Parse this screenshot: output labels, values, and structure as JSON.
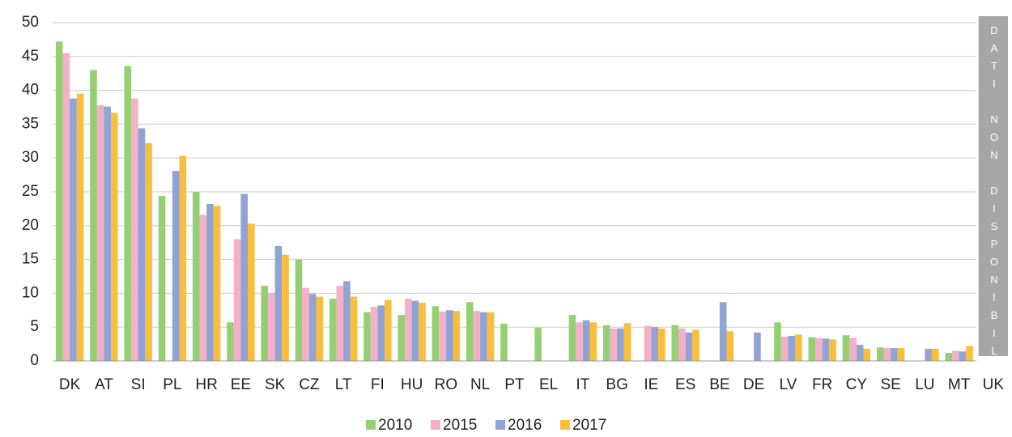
{
  "chart_data": {
    "type": "bar",
    "categories": [
      "DK",
      "AT",
      "SI",
      "PL",
      "HR",
      "EE",
      "SK",
      "CZ",
      "LT",
      "FI",
      "HU",
      "RO",
      "NL",
      "PT",
      "EL",
      "IT",
      "BG",
      "IE",
      "ES",
      "BE",
      "DE",
      "LV",
      "FR",
      "CY",
      "SE",
      "LU",
      "MT",
      "UK"
    ],
    "series": [
      {
        "name": "2010",
        "color": "#95cf74",
        "values": [
          47.2,
          43,
          43.6,
          24.4,
          25,
          5.7,
          11.1,
          15,
          9.2,
          7.2,
          6.8,
          8.1,
          8.7,
          5.5,
          4.9,
          6.8,
          5.3,
          null,
          5.3,
          null,
          null,
          5.7,
          3.5,
          3.8,
          2.0,
          null,
          1.2,
          null
        ]
      },
      {
        "name": "2015",
        "color": "#f5b0c8",
        "values": [
          45.5,
          37.8,
          38.8,
          null,
          21.6,
          18,
          10,
          10.8,
          11.1,
          8,
          9.2,
          7.3,
          7.4,
          null,
          null,
          5.7,
          4.8,
          5.2,
          4.8,
          null,
          null,
          3.6,
          3.4,
          3.4,
          1.9,
          null,
          1.5,
          null
        ]
      },
      {
        "name": "2016",
        "color": "#8fa3d5",
        "values": [
          38.8,
          37.6,
          34.4,
          28.1,
          23.2,
          24.7,
          17,
          9.9,
          11.8,
          8.2,
          8.9,
          7.5,
          7.2,
          null,
          null,
          6,
          4.8,
          5.0,
          4.2,
          8.7,
          4.2,
          3.7,
          3.3,
          2.4,
          1.9,
          1.8,
          1.4,
          null
        ]
      },
      {
        "name": "2017",
        "color": "#fbbd3c",
        "values": [
          39.5,
          36.7,
          32.2,
          30.3,
          22.9,
          20.3,
          15.7,
          9.5,
          9.5,
          9,
          8.6,
          7.4,
          7.2,
          null,
          null,
          5.7,
          5.6,
          4.8,
          4.6,
          4.4,
          null,
          3.9,
          3.2,
          1.8,
          1.9,
          1.8,
          2.2,
          null
        ]
      }
    ],
    "ylim": [
      0,
      50
    ],
    "yticks": [
      0,
      5,
      10,
      15,
      20,
      25,
      30,
      35,
      40,
      45,
      50
    ],
    "grid": true,
    "legend": "bottom",
    "annotation": "DATI NON DISPONIBILI"
  }
}
